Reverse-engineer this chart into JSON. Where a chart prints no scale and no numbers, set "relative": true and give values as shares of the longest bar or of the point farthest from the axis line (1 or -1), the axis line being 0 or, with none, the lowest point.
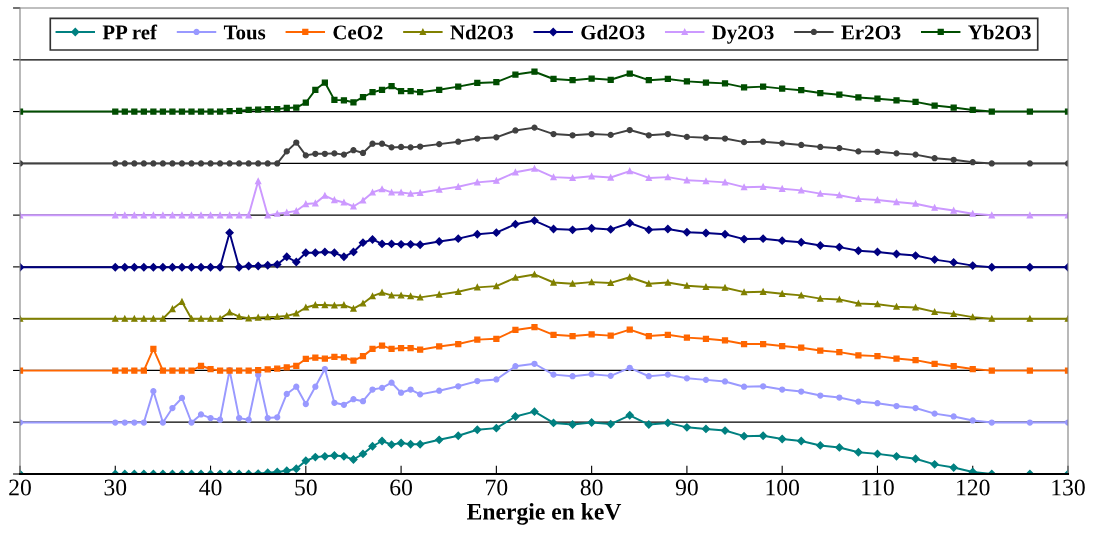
{
  "chart_data": {
    "type": "line",
    "relative": true,
    "xlabel": "Energie en keV",
    "xlim": [
      20,
      130
    ],
    "xticks": [
      20,
      30,
      40,
      50,
      60,
      70,
      80,
      90,
      100,
      110,
      120,
      130
    ],
    "grid": "y",
    "legend": "top",
    "x": [
      20,
      30,
      31,
      32,
      33,
      34,
      35,
      36,
      37,
      38,
      39,
      40,
      41,
      42,
      43,
      44,
      45,
      46,
      47,
      48,
      49,
      50,
      51,
      52,
      53,
      54,
      55,
      56,
      57,
      58,
      59,
      60,
      61,
      62,
      64,
      66,
      68,
      70,
      72,
      74,
      76,
      78,
      80,
      82,
      84,
      86,
      88,
      90,
      92,
      94,
      96,
      98,
      100,
      102,
      104,
      106,
      108,
      110,
      112,
      114,
      116,
      118,
      120,
      122,
      126,
      130
    ],
    "series": [
      {
        "name": "PP ref",
        "color": "#008080",
        "marker": "diamond",
        "values": [
          0,
          0,
          0,
          0,
          0,
          0,
          0,
          0,
          0,
          0,
          0,
          0,
          0,
          0,
          0,
          0,
          0.001,
          0.003,
          0.005,
          0.008,
          0.013,
          0.033,
          0.042,
          0.044,
          0.046,
          0.044,
          0.036,
          0.05,
          0.069,
          0.082,
          0.073,
          0.077,
          0.074,
          0.074,
          0.085,
          0.095,
          0.11,
          0.114,
          0.143,
          0.155,
          0.127,
          0.123,
          0.128,
          0.124,
          0.146,
          0.123,
          0.127,
          0.116,
          0.112,
          0.108,
          0.094,
          0.095,
          0.087,
          0.082,
          0.071,
          0.066,
          0.054,
          0.05,
          0.044,
          0.038,
          0.024,
          0.016,
          0.005,
          0,
          0,
          0
        ]
      },
      {
        "name": "Tous",
        "color": "#9999ff",
        "marker": "circle",
        "values": [
          0.128,
          0.128,
          0.128,
          0.128,
          0.128,
          0.206,
          0.128,
          0.164,
          0.189,
          0.128,
          0.148,
          0.139,
          0.135,
          0.258,
          0.139,
          0.135,
          0.246,
          0.139,
          0.141,
          0.199,
          0.217,
          0.174,
          0.217,
          0.261,
          0.177,
          0.172,
          0.186,
          0.181,
          0.21,
          0.214,
          0.227,
          0.202,
          0.21,
          0.198,
          0.207,
          0.218,
          0.231,
          0.235,
          0.268,
          0.274,
          0.247,
          0.243,
          0.248,
          0.244,
          0.264,
          0.243,
          0.247,
          0.238,
          0.234,
          0.23,
          0.217,
          0.218,
          0.21,
          0.205,
          0.195,
          0.19,
          0.18,
          0.176,
          0.169,
          0.164,
          0.15,
          0.143,
          0.133,
          0.128,
          0.128,
          0.128
        ]
      },
      {
        "name": "CeO2",
        "color": "#ff6600",
        "marker": "square",
        "values": [
          0.257,
          0.257,
          0.257,
          0.257,
          0.257,
          0.311,
          0.257,
          0.257,
          0.257,
          0.257,
          0.269,
          0.261,
          0.257,
          0.257,
          0.257,
          0.257,
          0.258,
          0.26,
          0.262,
          0.265,
          0.269,
          0.286,
          0.289,
          0.287,
          0.291,
          0.29,
          0.282,
          0.293,
          0.311,
          0.319,
          0.311,
          0.313,
          0.313,
          0.309,
          0.317,
          0.323,
          0.334,
          0.336,
          0.358,
          0.365,
          0.346,
          0.343,
          0.347,
          0.344,
          0.359,
          0.343,
          0.346,
          0.339,
          0.336,
          0.332,
          0.323,
          0.323,
          0.318,
          0.314,
          0.307,
          0.303,
          0.295,
          0.293,
          0.287,
          0.283,
          0.274,
          0.268,
          0.261,
          0.257,
          0.257,
          0.257
        ]
      },
      {
        "name": "Nd2O3",
        "color": "#808000",
        "marker": "triangle",
        "values": [
          0.386,
          0.386,
          0.386,
          0.386,
          0.386,
          0.386,
          0.386,
          0.41,
          0.428,
          0.386,
          0.386,
          0.386,
          0.386,
          0.402,
          0.391,
          0.387,
          0.389,
          0.39,
          0.391,
          0.393,
          0.399,
          0.414,
          0.42,
          0.42,
          0.419,
          0.42,
          0.411,
          0.424,
          0.442,
          0.451,
          0.444,
          0.444,
          0.442,
          0.439,
          0.446,
          0.453,
          0.464,
          0.467,
          0.488,
          0.496,
          0.476,
          0.473,
          0.477,
          0.475,
          0.489,
          0.473,
          0.476,
          0.468,
          0.465,
          0.463,
          0.452,
          0.453,
          0.448,
          0.444,
          0.436,
          0.434,
          0.424,
          0.422,
          0.416,
          0.414,
          0.403,
          0.398,
          0.39,
          0.386,
          0.386,
          0.386
        ]
      },
      {
        "name": "Gd2O3",
        "color": "#000080",
        "marker": "diamond",
        "values": [
          0.514,
          0.514,
          0.514,
          0.514,
          0.514,
          0.514,
          0.514,
          0.514,
          0.514,
          0.514,
          0.514,
          0.514,
          0.514,
          0.6,
          0.514,
          0.517,
          0.517,
          0.519,
          0.521,
          0.54,
          0.527,
          0.55,
          0.55,
          0.552,
          0.55,
          0.54,
          0.552,
          0.575,
          0.583,
          0.572,
          0.572,
          0.571,
          0.571,
          0.57,
          0.578,
          0.585,
          0.596,
          0.6,
          0.621,
          0.63,
          0.609,
          0.607,
          0.611,
          0.608,
          0.624,
          0.607,
          0.609,
          0.601,
          0.599,
          0.596,
          0.584,
          0.585,
          0.58,
          0.576,
          0.568,
          0.564,
          0.555,
          0.552,
          0.547,
          0.543,
          0.533,
          0.526,
          0.518,
          0.514,
          0.514,
          0.514
        ]
      },
      {
        "name": "Dy2O3",
        "color": "#cc99ff",
        "marker": "triangle",
        "values": [
          0.643,
          0.643,
          0.643,
          0.643,
          0.643,
          0.643,
          0.643,
          0.643,
          0.643,
          0.643,
          0.643,
          0.643,
          0.643,
          0.643,
          0.643,
          0.643,
          0.728,
          0.643,
          0.647,
          0.65,
          0.654,
          0.671,
          0.673,
          0.692,
          0.681,
          0.675,
          0.665,
          0.68,
          0.7,
          0.708,
          0.7,
          0.7,
          0.697,
          0.699,
          0.707,
          0.714,
          0.725,
          0.729,
          0.75,
          0.759,
          0.738,
          0.736,
          0.74,
          0.737,
          0.753,
          0.736,
          0.738,
          0.73,
          0.728,
          0.725,
          0.713,
          0.714,
          0.709,
          0.705,
          0.697,
          0.693,
          0.684,
          0.681,
          0.676,
          0.672,
          0.662,
          0.655,
          0.647,
          0.643,
          0.643,
          0.643
        ]
      },
      {
        "name": "Er2O3",
        "color": "#404040",
        "marker": "circle",
        "values": [
          0.772,
          0.772,
          0.772,
          0.772,
          0.772,
          0.772,
          0.772,
          0.772,
          0.772,
          0.772,
          0.772,
          0.772,
          0.772,
          0.772,
          0.772,
          0.772,
          0.772,
          0.772,
          0.772,
          0.802,
          0.824,
          0.792,
          0.796,
          0.796,
          0.797,
          0.794,
          0.805,
          0.798,
          0.821,
          0.821,
          0.812,
          0.813,
          0.812,
          0.814,
          0.82,
          0.826,
          0.834,
          0.837,
          0.854,
          0.861,
          0.845,
          0.842,
          0.845,
          0.843,
          0.855,
          0.842,
          0.845,
          0.838,
          0.836,
          0.834,
          0.825,
          0.826,
          0.822,
          0.818,
          0.813,
          0.81,
          0.802,
          0.801,
          0.797,
          0.794,
          0.785,
          0.781,
          0.775,
          0.772,
          0.772,
          0.772
        ]
      },
      {
        "name": "Yb2O3",
        "color": "#004d00",
        "marker": "square",
        "values": [
          0.901,
          0.901,
          0.901,
          0.901,
          0.901,
          0.901,
          0.901,
          0.901,
          0.901,
          0.901,
          0.901,
          0.901,
          0.901,
          0.902,
          0.903,
          0.905,
          0.906,
          0.907,
          0.907,
          0.91,
          0.911,
          0.923,
          0.955,
          0.973,
          0.93,
          0.929,
          0.924,
          0.937,
          0.949,
          0.955,
          0.964,
          0.952,
          0.952,
          0.949,
          0.955,
          0.963,
          0.972,
          0.974,
          0.993,
          1.0,
          0.982,
          0.979,
          0.983,
          0.98,
          0.995,
          0.979,
          0.982,
          0.976,
          0.973,
          0.971,
          0.961,
          0.963,
          0.958,
          0.954,
          0.947,
          0.943,
          0.936,
          0.933,
          0.929,
          0.925,
          0.916,
          0.911,
          0.905,
          0.901,
          0.901,
          0.901
        ]
      }
    ]
  }
}
